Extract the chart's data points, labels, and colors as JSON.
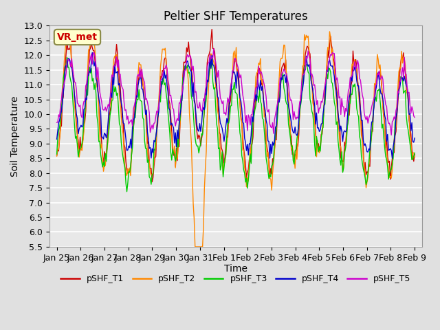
{
  "title": "Peltier SHF Temperatures",
  "xlabel": "Time",
  "ylabel": "Soil Temperature",
  "ylim": [
    5.5,
    13.0
  ],
  "yticks": [
    5.5,
    6.0,
    6.5,
    7.0,
    7.5,
    8.0,
    8.5,
    9.0,
    9.5,
    10.0,
    10.5,
    11.0,
    11.5,
    12.0,
    12.5,
    13.0
  ],
  "xtick_labels": [
    "Jan 25",
    "Jan 26",
    "Jan 27",
    "Jan 28",
    "Jan 29",
    "Jan 30",
    "Jan 31",
    "Feb 1",
    "Feb 2",
    "Feb 3",
    "Feb 4",
    "Feb 5",
    "Feb 6",
    "Feb 7",
    "Feb 8",
    "Feb 9"
  ],
  "series_names": [
    "pSHF_T1",
    "pSHF_T2",
    "pSHF_T3",
    "pSHF_T4",
    "pSHF_T5"
  ],
  "series_colors": [
    "#cc0000",
    "#ff8800",
    "#00cc00",
    "#0000cc",
    "#cc00cc"
  ],
  "annotation_text": "VR_met",
  "annotation_color": "#cc0000",
  "annotation_bg": "#ffffcc",
  "annotation_edge": "#888844",
  "bg_color": "#e0e0e0",
  "plot_bg": "#e8e8e8",
  "grid_color": "#ffffff",
  "title_fontsize": 12,
  "axis_label_fontsize": 10,
  "tick_fontsize": 9,
  "legend_fontsize": 9
}
